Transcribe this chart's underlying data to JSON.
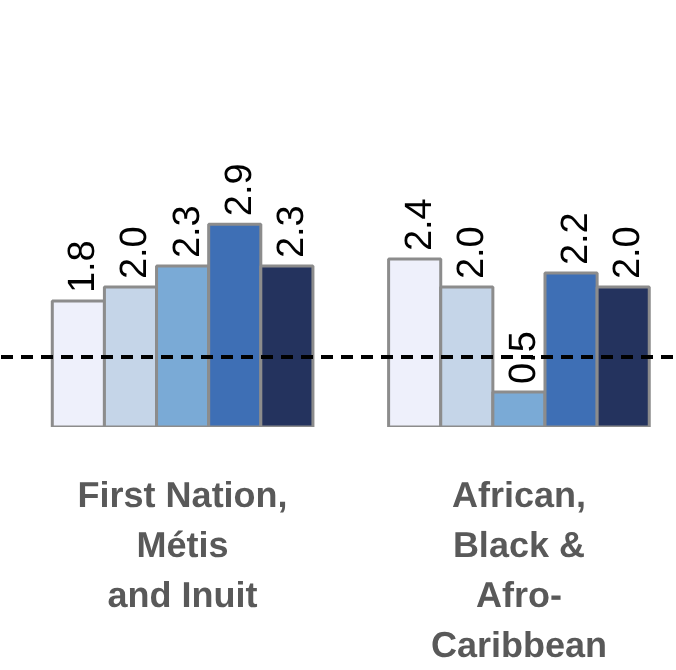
{
  "chart_data": {
    "type": "bar",
    "categories": [
      "First Nation,\nMétis\nand Inuit",
      "African,\nBlack &\nAfro-\nCaribbean"
    ],
    "series": [
      {
        "color": "#eef0fb",
        "values": [
          1.8,
          2.4
        ],
        "value_labels": [
          "1.8",
          "2.4"
        ]
      },
      {
        "color": "#c5d5e8",
        "values": [
          2.0,
          2.0
        ],
        "value_labels": [
          "2.0",
          "2.0"
        ]
      },
      {
        "color": "#7aaad6",
        "values": [
          2.3,
          0.5
        ],
        "value_labels": [
          "2.3",
          "0.5"
        ]
      },
      {
        "color": "#3e6fb5",
        "values": [
          2.9,
          2.2
        ],
        "value_labels": [
          "2.9",
          "2.2"
        ]
      },
      {
        "color": "#24335e",
        "values": [
          2.3,
          2.0
        ],
        "value_labels": [
          "2.3",
          "2.0"
        ]
      }
    ],
    "grid": false,
    "ref_lines": [
      {
        "axis": "y",
        "value": 1.0,
        "color": "#000000",
        "line_style": "dashed"
      }
    ]
  }
}
